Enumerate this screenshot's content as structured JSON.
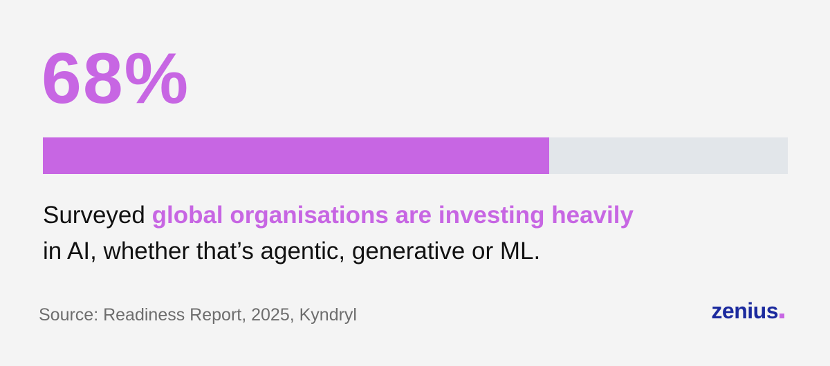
{
  "chart_data": {
    "type": "progress",
    "value": 68,
    "value_label": "68%",
    "xlim": [
      0,
      100
    ],
    "color": "#c766e3",
    "track_color": "#e2e6ea",
    "caption": [
      "Surveyed",
      "global organisations are investing heavily",
      "in AI, whether that’s agentic, generative or ML."
    ],
    "source": "Source: Readiness Report, 2025, Kyndryl",
    "logo": "zenius"
  }
}
